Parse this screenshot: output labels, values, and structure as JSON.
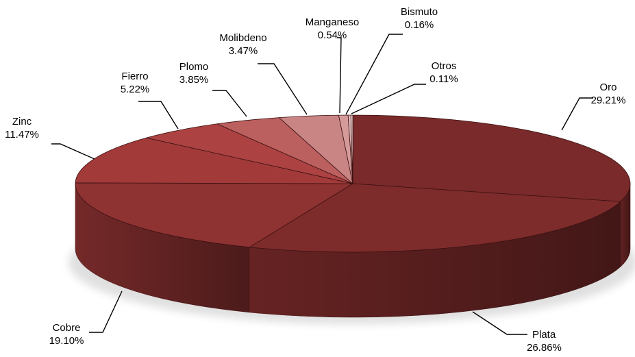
{
  "chart_data": {
    "type": "pie",
    "three_d": true,
    "legend": "none",
    "slices": [
      {
        "label": "Oro",
        "value": 29.21,
        "value_label": "29.21%",
        "color": "#7a2a2a"
      },
      {
        "label": "Plata",
        "value": 26.86,
        "value_label": "26.86%",
        "color": "#7d2b2b"
      },
      {
        "label": "Cobre",
        "value": 19.1,
        "value_label": "19.10%",
        "color": "#8f3232"
      },
      {
        "label": "Zinc",
        "value": 11.47,
        "value_label": "11.47%",
        "color": "#a23a3a"
      },
      {
        "label": "Fierro",
        "value": 5.22,
        "value_label": "5.22%",
        "color": "#ac4242"
      },
      {
        "label": "Plomo",
        "value": 3.85,
        "value_label": "3.85%",
        "color": "#bb5f5f"
      },
      {
        "label": "Molibdeno",
        "value": 3.47,
        "value_label": "3.47%",
        "color": "#c98484"
      },
      {
        "label": "Manganeso",
        "value": 0.54,
        "value_label": "0.54%",
        "color": "#d59b9b"
      },
      {
        "label": "Bismuto",
        "value": 0.16,
        "value_label": "0.16%",
        "color": "#e0b8b8"
      },
      {
        "label": "Otros",
        "value": 0.11,
        "value_label": "0.11%",
        "color": "#efdada"
      }
    ]
  }
}
